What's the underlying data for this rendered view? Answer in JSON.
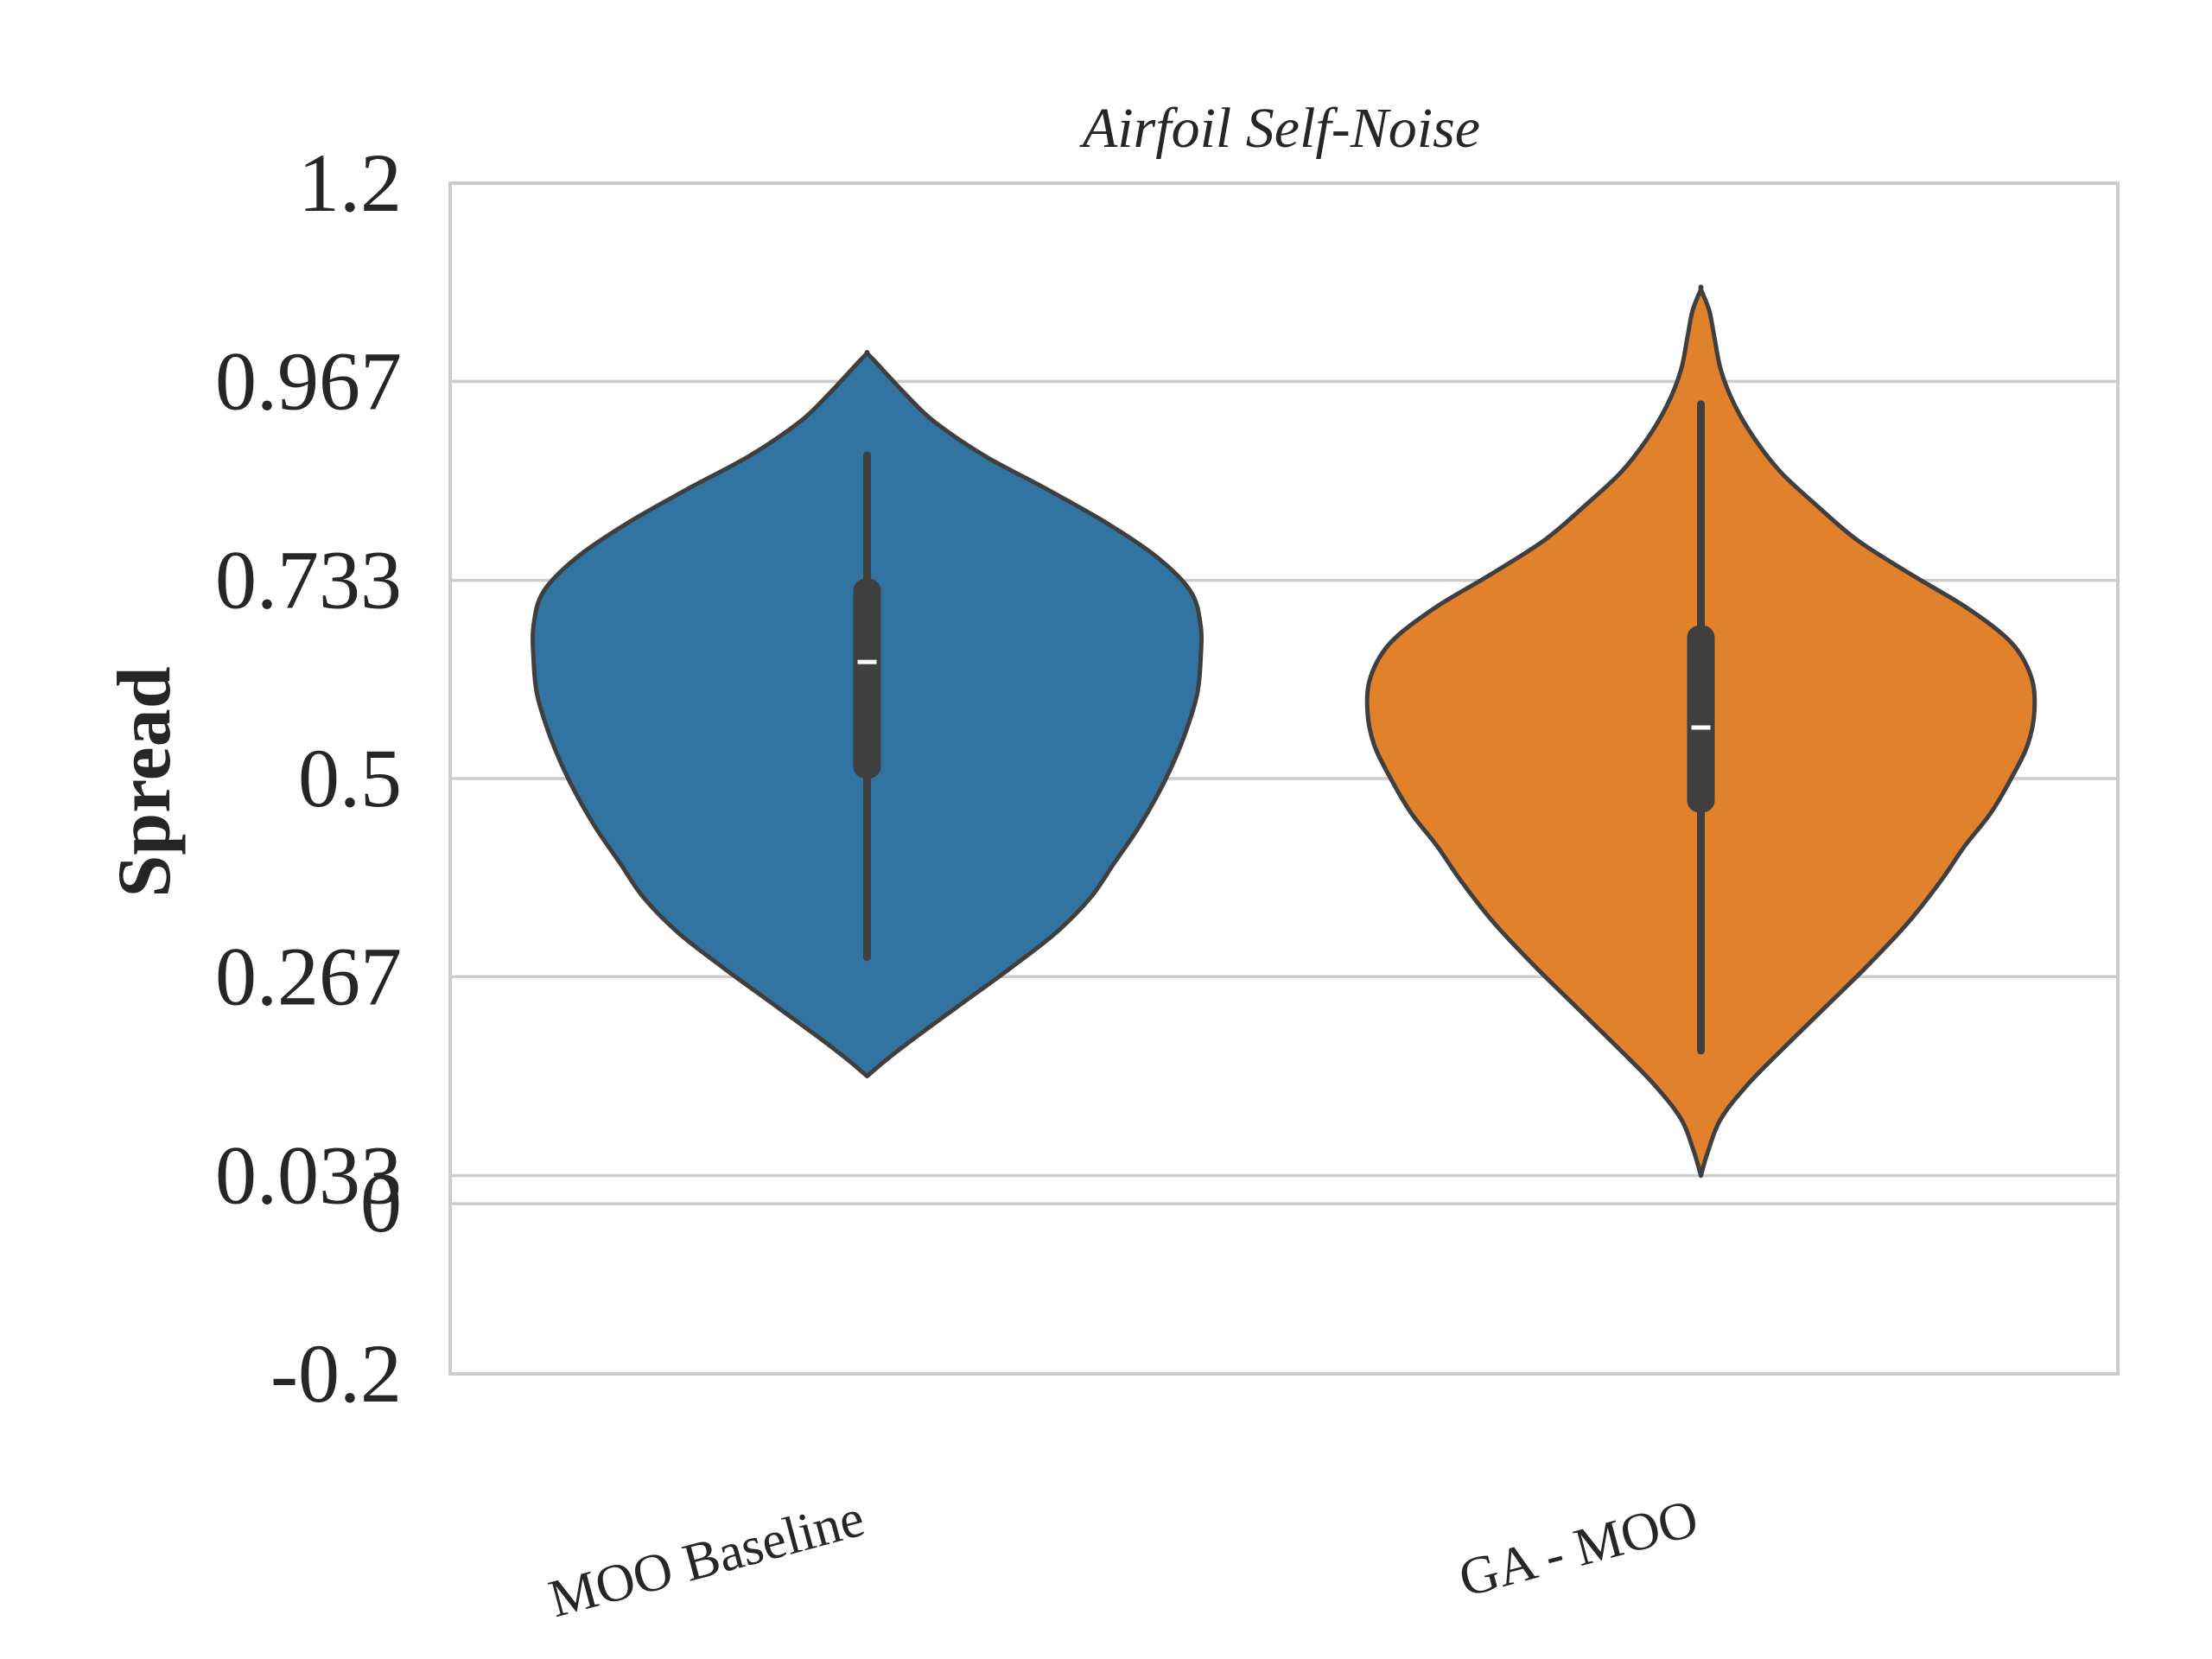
{
  "chart_data": {
    "type": "violin",
    "title": "Airfoil Self-Noise",
    "xlabel": "",
    "ylabel": "Spread",
    "ylim": [
      -0.2,
      1.2
    ],
    "yticks": [
      {
        "value": -0.2,
        "label": "-0.2"
      },
      {
        "value": 0,
        "label": "0"
      },
      {
        "value": 0.033,
        "label": "0.033"
      },
      {
        "value": 0.267,
        "label": "0.267"
      },
      {
        "value": 0.5,
        "label": "0.5"
      },
      {
        "value": 0.733,
        "label": "0.733"
      },
      {
        "value": 0.967,
        "label": "0.967"
      },
      {
        "value": 1.2,
        "label": "1.2"
      }
    ],
    "grid": true,
    "categories": [
      "MOO Baseline",
      "GA - MOO"
    ],
    "colors": {
      "MOO Baseline": "#3274a1",
      "GA - MOO": "#e1812c",
      "outline": "#3f3f3f",
      "grid": "#cccccc"
    },
    "violins": [
      {
        "category": "MOO Baseline",
        "min": 0.29,
        "q1": 0.5,
        "median": 0.637,
        "q3": 0.735,
        "max": 0.88,
        "kde_range": [
          0.15,
          1.0
        ],
        "density_profile": [
          [
            0.15,
            0.0
          ],
          [
            0.17,
            0.06
          ],
          [
            0.2,
            0.16
          ],
          [
            0.24,
            0.3
          ],
          [
            0.28,
            0.44
          ],
          [
            0.32,
            0.57
          ],
          [
            0.36,
            0.67
          ],
          [
            0.4,
            0.74
          ],
          [
            0.44,
            0.81
          ],
          [
            0.48,
            0.87
          ],
          [
            0.52,
            0.92
          ],
          [
            0.56,
            0.96
          ],
          [
            0.6,
            0.99
          ],
          [
            0.64,
            1.0
          ],
          [
            0.68,
            1.0
          ],
          [
            0.72,
            0.97
          ],
          [
            0.76,
            0.87
          ],
          [
            0.8,
            0.72
          ],
          [
            0.84,
            0.54
          ],
          [
            0.88,
            0.35
          ],
          [
            0.92,
            0.2
          ],
          [
            0.95,
            0.12
          ],
          [
            0.975,
            0.06
          ],
          [
            0.99,
            0.025
          ],
          [
            1.0,
            0.0
          ]
        ]
      },
      {
        "category": "GA - MOO",
        "min": 0.18,
        "q1": 0.46,
        "median": 0.56,
        "q3": 0.68,
        "max": 0.94,
        "kde_range": [
          0.033,
          1.075
        ],
        "density_profile": [
          [
            0.033,
            0.0
          ],
          [
            0.06,
            0.02
          ],
          [
            0.1,
            0.06
          ],
          [
            0.14,
            0.14
          ],
          [
            0.18,
            0.24
          ],
          [
            0.23,
            0.37
          ],
          [
            0.28,
            0.5
          ],
          [
            0.33,
            0.62
          ],
          [
            0.38,
            0.72
          ],
          [
            0.42,
            0.79
          ],
          [
            0.46,
            0.87
          ],
          [
            0.5,
            0.93
          ],
          [
            0.54,
            0.98
          ],
          [
            0.58,
            1.0
          ],
          [
            0.62,
            0.99
          ],
          [
            0.66,
            0.93
          ],
          [
            0.7,
            0.8
          ],
          [
            0.74,
            0.63
          ],
          [
            0.78,
            0.47
          ],
          [
            0.82,
            0.35
          ],
          [
            0.86,
            0.24
          ],
          [
            0.9,
            0.16
          ],
          [
            0.94,
            0.1
          ],
          [
            0.98,
            0.06
          ],
          [
            1.02,
            0.04
          ],
          [
            1.05,
            0.025
          ],
          [
            1.075,
            0.0
          ]
        ]
      }
    ]
  }
}
